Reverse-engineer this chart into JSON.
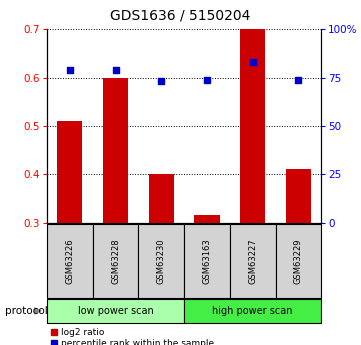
{
  "title": "GDS1636 / 5150204",
  "samples": [
    "GSM63226",
    "GSM63228",
    "GSM63230",
    "GSM63163",
    "GSM63227",
    "GSM63229"
  ],
  "log2_ratio": [
    0.51,
    0.6,
    0.4,
    0.315,
    0.7,
    0.41
  ],
  "log2_base": 0.3,
  "percentile_rank": [
    79,
    79,
    73,
    74,
    83,
    74
  ],
  "bar_color": "#cc0000",
  "dot_color": "#0000cc",
  "ylim_left": [
    0.3,
    0.7
  ],
  "ylim_right": [
    0,
    100
  ],
  "yticks_left": [
    0.3,
    0.4,
    0.5,
    0.6,
    0.7
  ],
  "yticks_right": [
    0,
    25,
    50,
    75,
    100
  ],
  "ytick_labels_right": [
    "0",
    "25",
    "50",
    "75",
    "100%"
  ],
  "protocol_groups": [
    {
      "label": "low power scan",
      "n_samples": 3,
      "color": "#aaffaa"
    },
    {
      "label": "high power scan",
      "n_samples": 3,
      "color": "#44ee44"
    }
  ],
  "bar_width": 0.55,
  "background_color": "#ffffff",
  "legend_red_label": "log2 ratio",
  "legend_blue_label": "percentile rank within the sample",
  "protocol_label": "protocol"
}
